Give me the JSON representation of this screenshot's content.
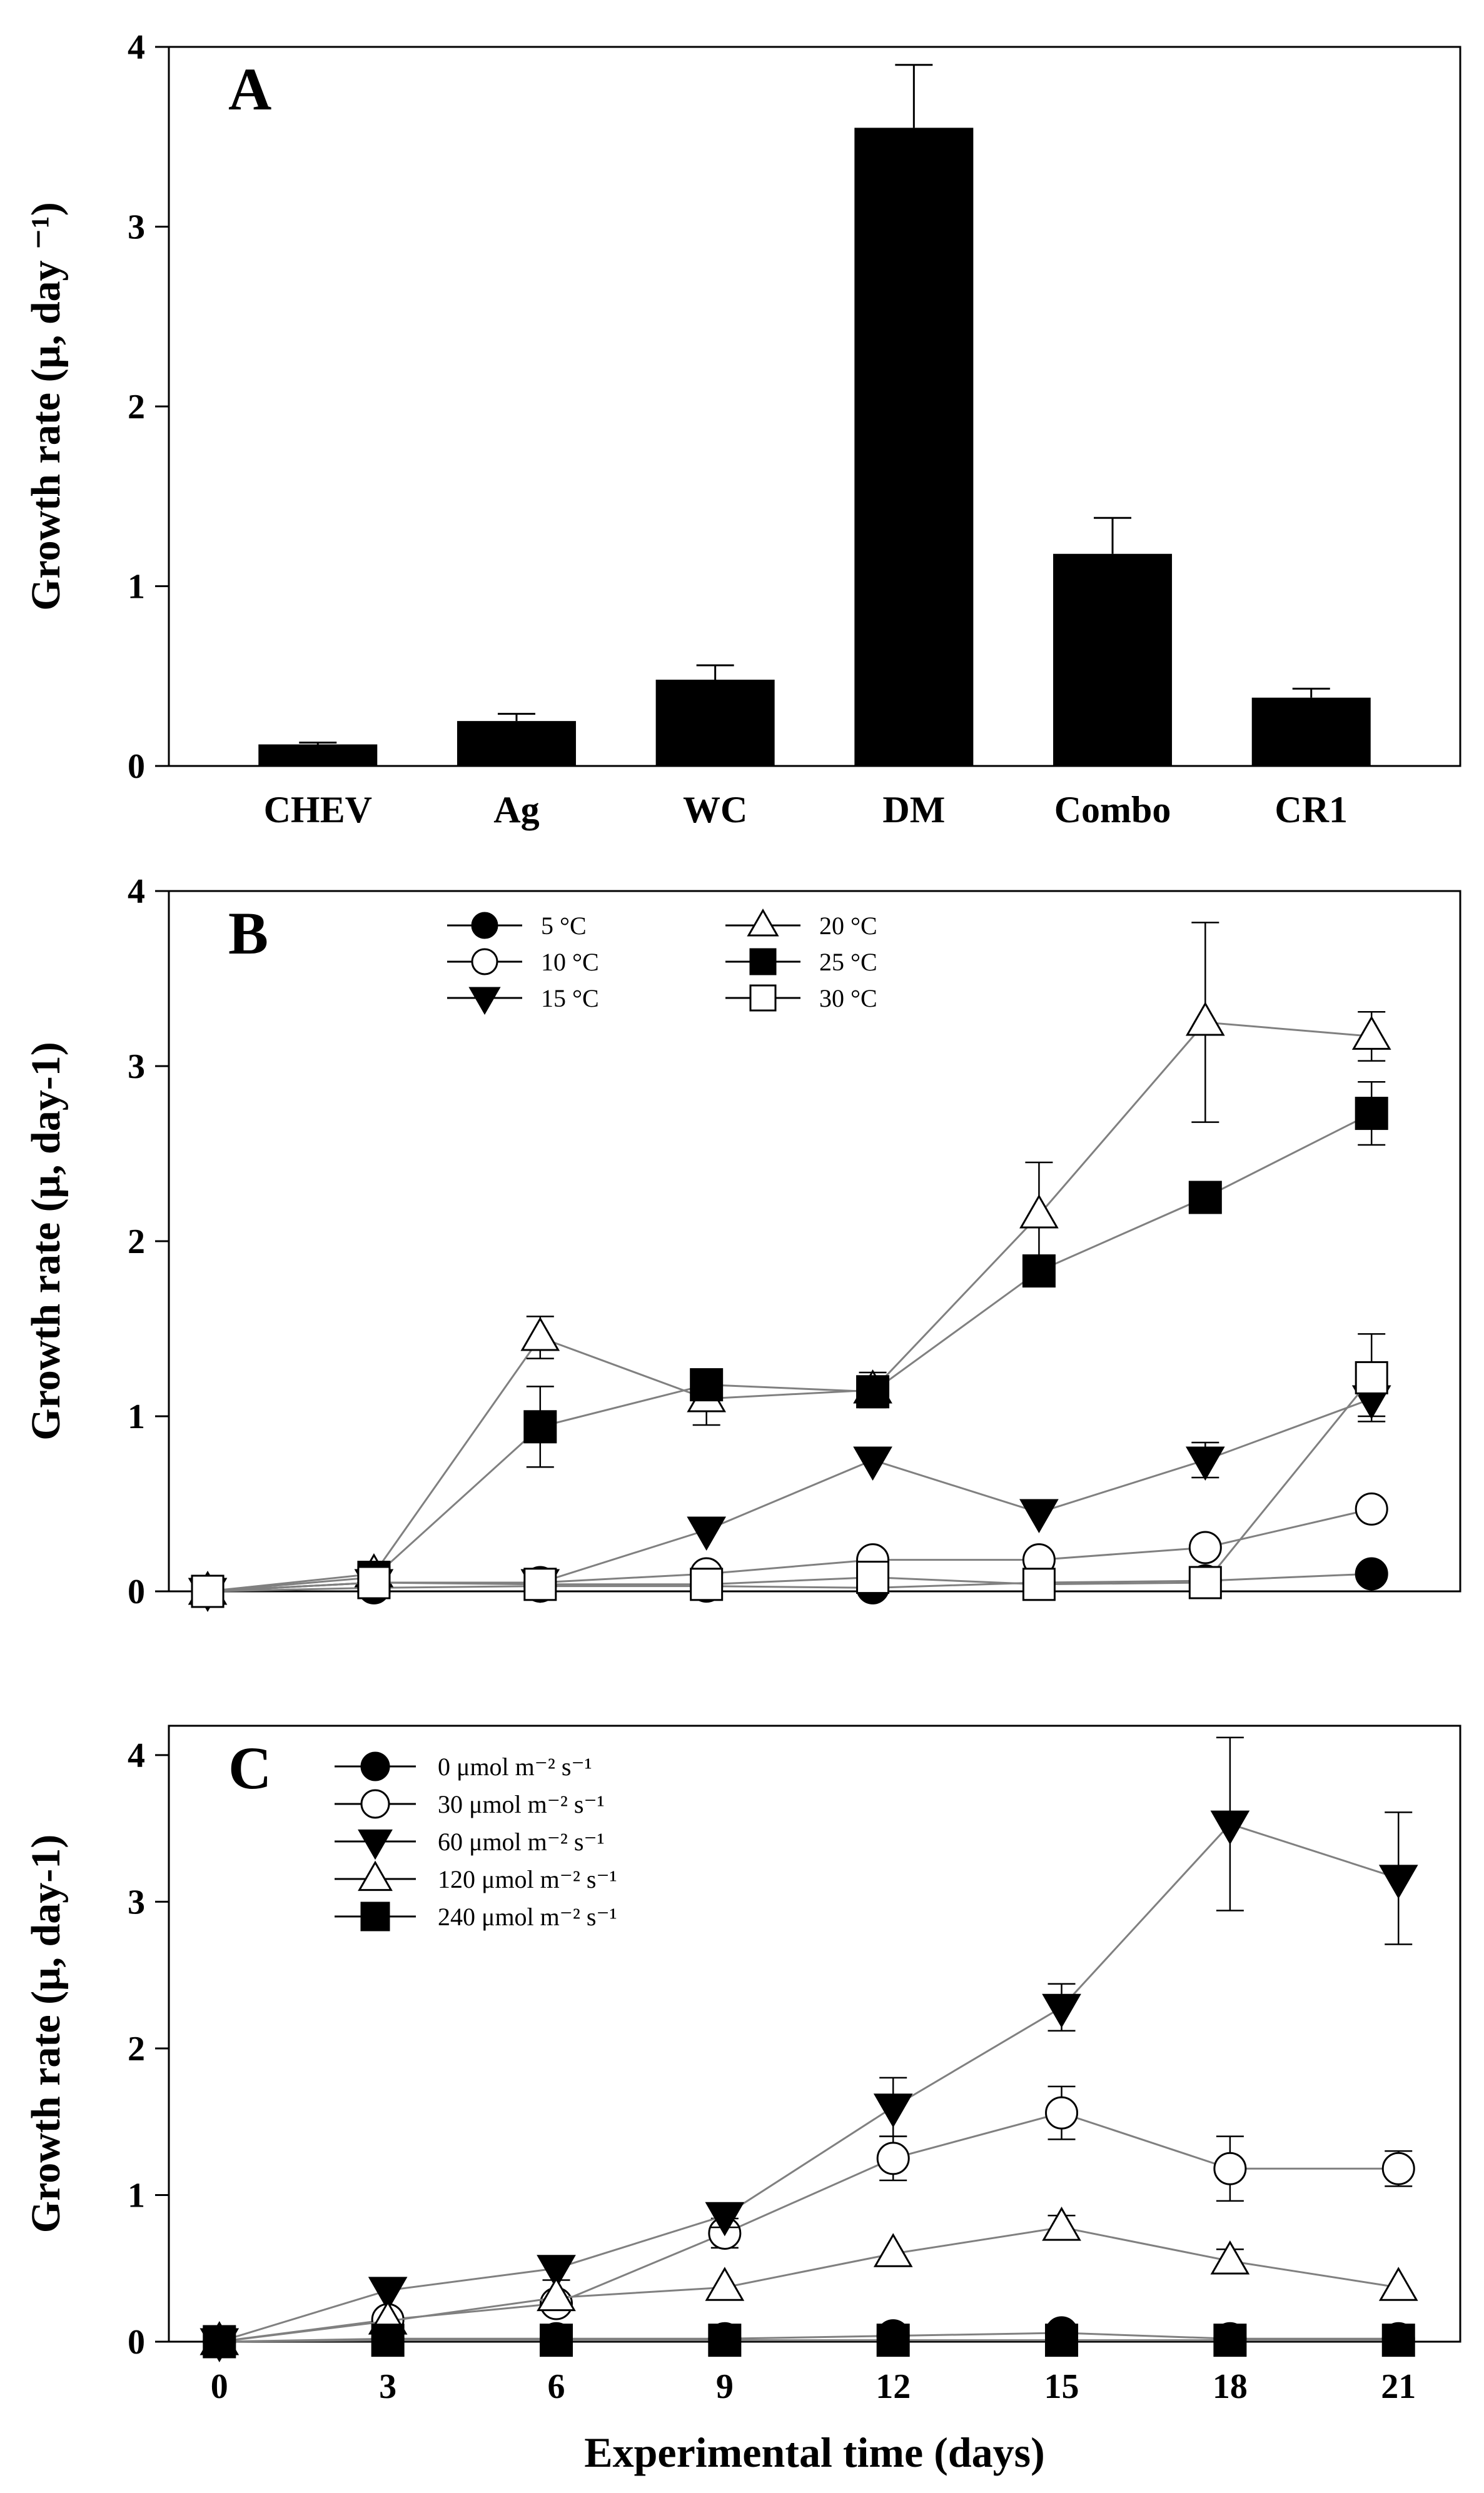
{
  "chart_data": [
    {
      "id": "A",
      "type": "bar",
      "panel_label": "A",
      "ylabel": "Growth rate (μ, day ⁻¹)",
      "xlabel": "",
      "ylim": [
        0,
        4
      ],
      "yticks": [
        0,
        1,
        2,
        3,
        4
      ],
      "categories": [
        "CHEV",
        "Ag",
        "WC",
        "DM",
        "Combo",
        "CR1"
      ],
      "values": [
        0.12,
        0.25,
        0.48,
        3.55,
        1.18,
        0.38
      ],
      "errors": [
        0.01,
        0.04,
        0.08,
        0.35,
        0.2,
        0.05
      ],
      "bar_color": "#000000"
    },
    {
      "id": "B",
      "type": "line",
      "panel_label": "B",
      "ylabel": "Growth rate (μ, day-1)",
      "xlabel": "",
      "ylim": [
        0,
        4
      ],
      "yticks": [
        0,
        1,
        2,
        3,
        4
      ],
      "xlim": [
        -0.7,
        22.6
      ],
      "x": [
        0,
        3,
        6,
        9,
        12,
        15,
        18,
        21
      ],
      "legend_position": "top-center",
      "legend_columns": 2,
      "series": [
        {
          "name": "5 °C",
          "marker": "circle-filled",
          "values": [
            0,
            0.02,
            0.03,
            0.03,
            0.02,
            0.05,
            0.06,
            0.1
          ],
          "errors": [
            0,
            0,
            0,
            0,
            0,
            0,
            0,
            0
          ]
        },
        {
          "name": "10 °C",
          "marker": "circle-open",
          "values": [
            0,
            0.05,
            0.05,
            0.1,
            0.18,
            0.18,
            0.25,
            0.47
          ],
          "errors": [
            0,
            0,
            0,
            0,
            0,
            0,
            0,
            0
          ]
        },
        {
          "name": "15 °C",
          "marker": "triangle-down-filled",
          "values": [
            0,
            0.05,
            0.05,
            0.35,
            0.75,
            0.45,
            0.75,
            1.1
          ],
          "errors": [
            0,
            0,
            0,
            0,
            0,
            0,
            0.1,
            0.1
          ]
        },
        {
          "name": "20 °C",
          "marker": "triangle-up-open",
          "values": [
            0,
            0.1,
            1.45,
            1.1,
            1.15,
            2.15,
            3.25,
            3.17
          ],
          "errors": [
            0,
            0,
            0.12,
            0.15,
            0.1,
            0.3,
            0.57,
            0.14
          ]
        },
        {
          "name": "25 °C",
          "marker": "square-filled",
          "values": [
            0,
            0.08,
            0.94,
            1.18,
            1.14,
            1.83,
            2.25,
            2.73
          ],
          "errors": [
            0,
            0,
            0.23,
            0,
            0.08,
            0,
            0,
            0.18
          ]
        },
        {
          "name": "30 °C",
          "marker": "square-open",
          "values": [
            0,
            0.05,
            0.04,
            0.04,
            0.08,
            0.04,
            0.05,
            1.22
          ],
          "errors": [
            0,
            0,
            0,
            0,
            0,
            0,
            0,
            0.25
          ]
        }
      ]
    },
    {
      "id": "C",
      "type": "line",
      "panel_label": "C",
      "ylabel": "Growth rate (μ, day-1)",
      "xlabel": "Experimental time (days)",
      "ylim": [
        0,
        4.2
      ],
      "yticks": [
        0,
        1,
        2,
        3,
        4
      ],
      "xlim": [
        -0.9,
        22.1
      ],
      "x": [
        0,
        3,
        6,
        9,
        12,
        15,
        18,
        21
      ],
      "xticks": [
        0,
        3,
        6,
        9,
        12,
        15,
        18,
        21
      ],
      "legend_position": "top-left",
      "legend_columns": 1,
      "series": [
        {
          "name": "0 μmol m⁻² s⁻¹",
          "marker": "circle-filled",
          "values": [
            0,
            0.02,
            0.02,
            0.02,
            0.04,
            0.06,
            0.02,
            0.02
          ],
          "errors": [
            0,
            0,
            0,
            0,
            0,
            0,
            0,
            0
          ]
        },
        {
          "name": "30 μmol m⁻² s⁻¹",
          "marker": "circle-open",
          "values": [
            0,
            0.15,
            0.26,
            0.74,
            1.25,
            1.56,
            1.18,
            1.18
          ],
          "errors": [
            0,
            0,
            0,
            0.1,
            0.15,
            0.18,
            0.22,
            0.12
          ]
        },
        {
          "name": "60 μmol m⁻² s⁻¹",
          "marker": "triangle-down-filled",
          "values": [
            0,
            0.35,
            0.5,
            0.86,
            1.6,
            2.28,
            3.53,
            3.16
          ],
          "errors": [
            0,
            0,
            0.08,
            0.08,
            0.2,
            0.16,
            0.59,
            0.45
          ]
        },
        {
          "name": "120 μmol m⁻² s⁻¹",
          "marker": "triangle-up-open",
          "values": [
            0,
            0.14,
            0.3,
            0.37,
            0.6,
            0.78,
            0.55,
            0.37
          ],
          "errors": [
            0,
            0,
            0,
            0,
            0,
            0.08,
            0.08,
            0
          ]
        },
        {
          "name": "240 μmol m⁻² s⁻¹",
          "marker": "square-filled",
          "values": [
            0,
            0.01,
            0.01,
            0.01,
            0.01,
            0.01,
            0.01,
            0.01
          ],
          "errors": [
            0,
            0,
            0,
            0,
            0,
            0,
            0,
            0
          ]
        }
      ]
    }
  ]
}
